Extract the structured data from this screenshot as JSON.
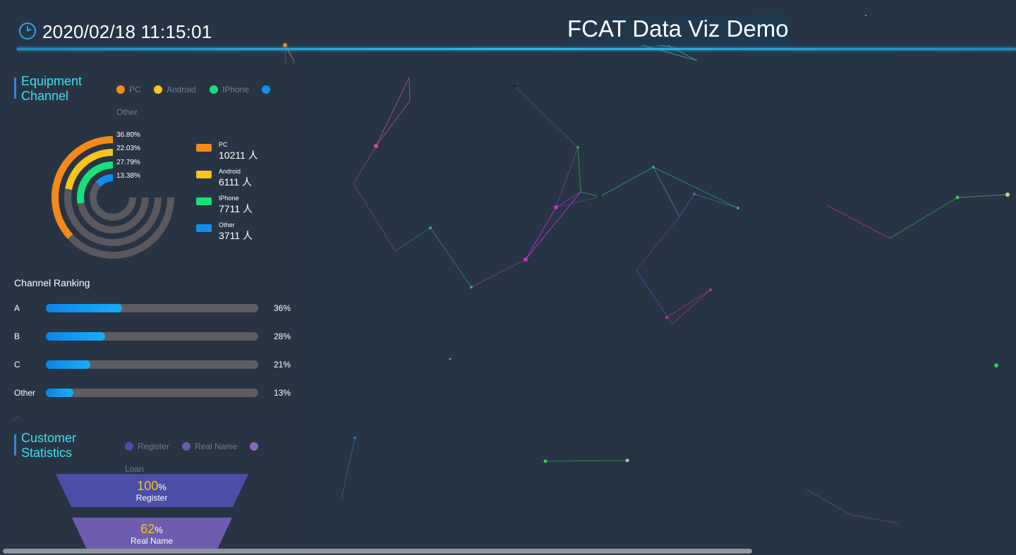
{
  "header": {
    "datetime": "2020/02/18 11:15:01",
    "title": "FCAT Data Viz Demo"
  },
  "equipment": {
    "title_line1": "Equipment",
    "title_line2": "Channel",
    "legend": [
      {
        "label": "PC",
        "color": "#f48a1b"
      },
      {
        "label": "Android",
        "color": "#f8c51c"
      },
      {
        "label": "IPhone",
        "color": "#16e17a"
      },
      {
        "label": "Other",
        "color": "#0e8ff0"
      }
    ],
    "rings": [
      {
        "name": "PC",
        "percent_label": "36.80%",
        "fraction": 0.368,
        "color": "#f48a1b"
      },
      {
        "name": "Android",
        "percent_label": "22.03%",
        "fraction": 0.2203,
        "color": "#f8c51c"
      },
      {
        "name": "IPhone",
        "percent_label": "27.79%",
        "fraction": 0.2779,
        "color": "#16e17a"
      },
      {
        "name": "Other",
        "percent_label": "13.38%",
        "fraction": 0.1338,
        "color": "#0e8ff0"
      }
    ],
    "keys": [
      {
        "name": "PC",
        "value": "10211 人",
        "color": "#f48a1b"
      },
      {
        "name": "Android",
        "value": "6111 人",
        "color": "#f8c51c"
      },
      {
        "name": "IPhone",
        "value": "7711 人",
        "color": "#16e17a"
      },
      {
        "name": "Other",
        "value": "3711 人",
        "color": "#0e8ff0"
      }
    ],
    "ranking_title": "Channel Ranking",
    "ranking": [
      {
        "label": "A",
        "percent": "36%",
        "fraction": 0.36
      },
      {
        "label": "B",
        "percent": "28%",
        "fraction": 0.28
      },
      {
        "label": "C",
        "percent": "21%",
        "fraction": 0.21
      },
      {
        "label": "Other",
        "percent": "13%",
        "fraction": 0.13
      }
    ]
  },
  "customer": {
    "title_line1": "Customer",
    "title_line2": "Statistics",
    "legend": [
      {
        "label": "Register",
        "color": "#4b4ea7"
      },
      {
        "label": "Real Name",
        "color": "#6a5aaa"
      },
      {
        "label": "Loan",
        "color": "#8c66b8"
      }
    ],
    "funnel": [
      {
        "value": "100",
        "unit": "%",
        "label": "Register",
        "color": "#4b4ea7"
      },
      {
        "value": "62",
        "unit": "%",
        "label": "Real Name",
        "color": "#6e5daf"
      }
    ]
  },
  "colors": {
    "background": "#263446",
    "panel": "#283444",
    "accent_title": "#3ee0ef",
    "ring_track": "#58585e"
  }
}
